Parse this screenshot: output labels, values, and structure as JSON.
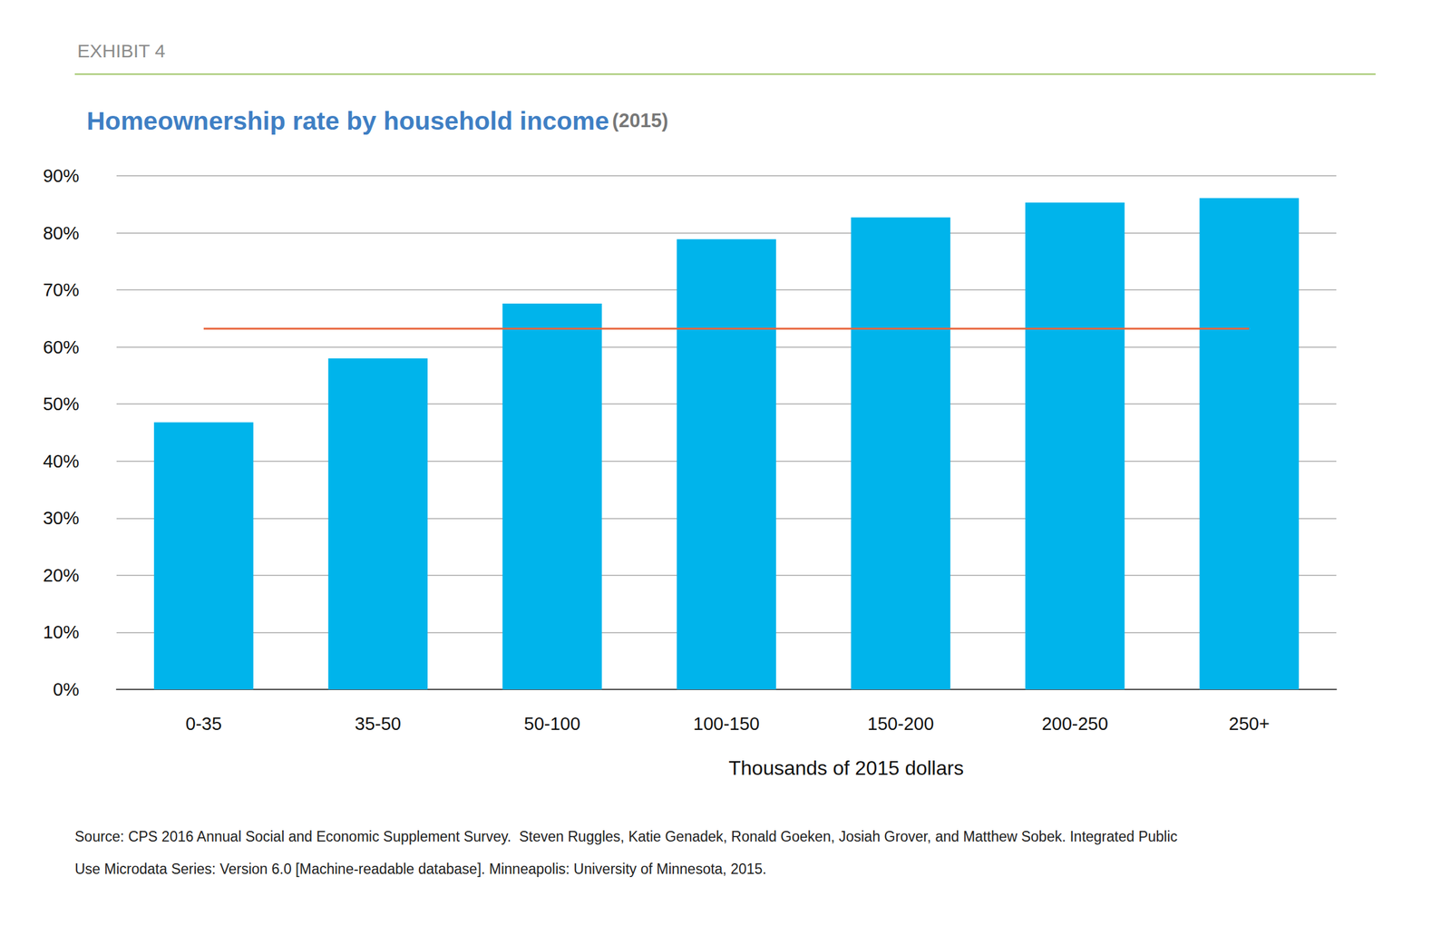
{
  "chart_data": {
    "type": "bar",
    "header": "EXHIBIT 4",
    "title": "Homeownership rate by household income",
    "subtitle": "(2015)",
    "x_label": "Thousands of 2015 dollars",
    "categories": [
      "0-35",
      "35-50",
      "50-100",
      "100-150",
      "150-200",
      "200-250",
      "250+"
    ],
    "series": [
      {
        "type": "bar",
        "color": "#00b4eb",
        "values": [
          46.8,
          58.0,
          67.6,
          78.9,
          82.7,
          85.3,
          86.1
        ]
      },
      {
        "type": "line",
        "color": "#e8663d",
        "values": [
          63.2,
          63.2,
          63.2,
          63.2,
          63.2,
          63.2,
          63.2
        ]
      }
    ],
    "ylim": [
      0,
      90
    ],
    "yticks": [
      {
        "value": 0,
        "label": "0%"
      },
      {
        "value": 10,
        "label": "10%"
      },
      {
        "value": 20,
        "label": "20%"
      },
      {
        "value": 30,
        "label": "30%"
      },
      {
        "value": 40,
        "label": "40%"
      },
      {
        "value": 50,
        "label": "50%"
      },
      {
        "value": 60,
        "label": "60%"
      },
      {
        "value": 70,
        "label": "70%"
      },
      {
        "value": 80,
        "label": "80%"
      },
      {
        "value": 90,
        "label": "90%"
      }
    ],
    "grid": true,
    "source": [
      "Source: CPS 2016 Annual Social and Economic Supplement Survey.  Steven Ruggles, Katie Genadek, Ronald Goeken, Josiah Grover, and Matthew Sobek. Integrated Public",
      "Use Microdata Series: Version 6.0 [Machine-readable database]. Minneapolis: University of Minnesota, 2015."
    ]
  }
}
